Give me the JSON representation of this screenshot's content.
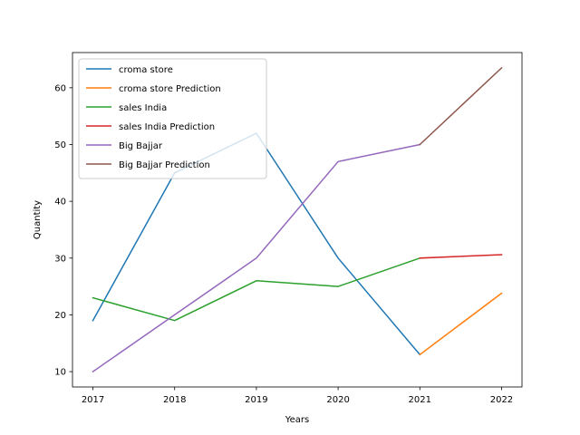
{
  "chart_data": {
    "type": "line",
    "xlabel": "Years",
    "ylabel": "Quantity",
    "x_ticks": [
      2017,
      2018,
      2019,
      2020,
      2021,
      2022
    ],
    "y_ticks": [
      10,
      20,
      30,
      40,
      50,
      60
    ],
    "xlim": [
      2016.75,
      2022.25
    ],
    "ylim": [
      7.3,
      66.2
    ],
    "grid": false,
    "legend_position": "upper-left",
    "series": [
      {
        "name": "croma store",
        "color": "#1f77b4",
        "x": [
          2017,
          2018,
          2019,
          2020,
          2021
        ],
        "y": [
          19,
          45,
          52,
          30,
          13
        ]
      },
      {
        "name": "croma store Prediction",
        "color": "#ff7f0e",
        "x": [
          2021,
          2022
        ],
        "y": [
          13,
          23.8
        ]
      },
      {
        "name": "sales India",
        "color": "#2ca02c",
        "x": [
          2017,
          2018,
          2019,
          2020,
          2021
        ],
        "y": [
          23,
          19,
          26,
          25,
          30
        ]
      },
      {
        "name": "sales India Prediction",
        "color": "#d62728",
        "x": [
          2021,
          2022
        ],
        "y": [
          30,
          30.6
        ]
      },
      {
        "name": "Big Bajjar",
        "color": "#9467bd",
        "x": [
          2017,
          2018,
          2019,
          2020,
          2021
        ],
        "y": [
          10,
          20,
          30,
          47,
          50
        ]
      },
      {
        "name": "Big Bajjar Prediction",
        "color": "#8c564b",
        "x": [
          2021,
          2022
        ],
        "y": [
          50,
          63.5
        ]
      }
    ]
  }
}
